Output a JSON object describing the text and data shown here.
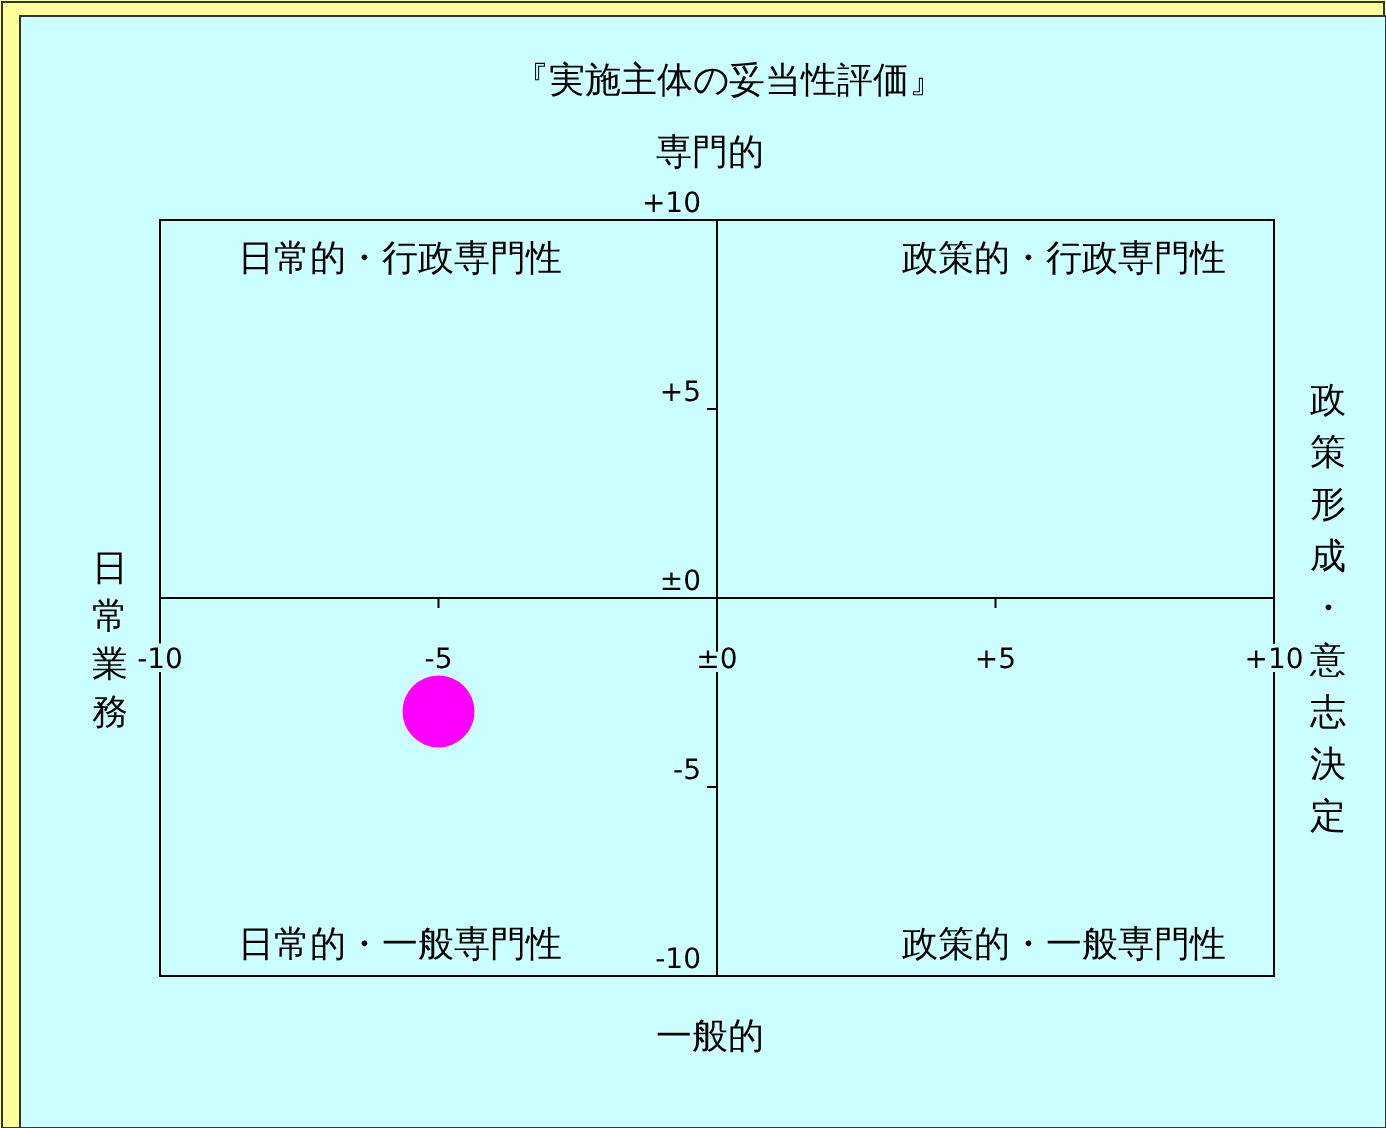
{
  "chart_data": {
    "type": "scatter",
    "title": "『実施主体の妥当性評価』",
    "x": [
      -5
    ],
    "series": [
      {
        "color": "#ff00ff",
        "values": [
          -3
        ]
      }
    ],
    "xlim": [
      -10,
      10
    ],
    "ylim": [
      -10,
      10
    ],
    "xticks": [
      -10,
      -5,
      {
        "value": 0,
        "label": "±0"
      },
      {
        "value": 5,
        "label": "+5"
      },
      {
        "value": 10,
        "label": "+10"
      }
    ],
    "yticks": [
      {
        "value": 10,
        "label": "+10"
      },
      {
        "value": 5,
        "label": "+5"
      },
      {
        "value": 0,
        "label": "±0"
      },
      -5,
      -10
    ],
    "marker": "circle",
    "grid": false,
    "annotations": [
      "専門的",
      "一般的",
      "日常業務",
      "政策形成・意志決定",
      "日常的・行政専門性",
      "政策的・行政専門性",
      "日常的・一般専門性",
      "政策的・一般専門性"
    ]
  }
}
